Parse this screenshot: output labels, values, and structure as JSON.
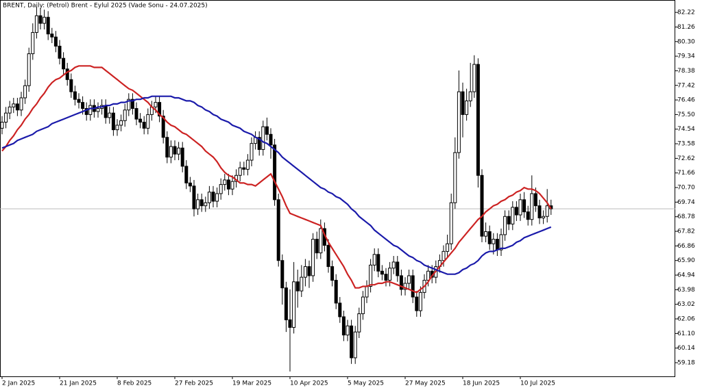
{
  "chart_data": {
    "type": "candlestick",
    "title": "BRENT, Daily:  (Petrol) Brent - Eylul 2025 (Vade Sonu - 24.07.2025)",
    "categories": [
      "2 Jan 2025",
      null,
      null,
      null,
      null,
      null,
      null,
      null,
      null,
      null,
      null,
      null,
      null,
      null,
      null,
      "21 Jan 2025",
      null,
      null,
      null,
      null,
      null,
      null,
      null,
      null,
      null,
      null,
      null,
      null,
      null,
      null,
      "8 Feb 2025",
      null,
      null,
      null,
      null,
      null,
      null,
      null,
      null,
      null,
      null,
      null,
      null,
      null,
      null,
      "27 Feb 2025",
      null,
      null,
      null,
      null,
      null,
      null,
      null,
      null,
      null,
      null,
      null,
      null,
      null,
      null,
      "19 Mar 2025",
      null,
      null,
      null,
      null,
      null,
      null,
      null,
      null,
      null,
      null,
      null,
      null,
      null,
      null,
      "10 Apr 2025",
      null,
      null,
      null,
      null,
      null,
      null,
      null,
      null,
      null,
      null,
      null,
      null,
      null,
      null,
      "5 May 2025",
      null,
      null,
      null,
      null,
      null,
      null,
      null,
      null,
      null,
      null,
      null,
      null,
      null,
      null,
      "27 May 2025",
      null,
      null,
      null,
      null,
      null,
      null,
      null,
      null,
      null,
      null,
      null,
      null,
      null,
      null,
      "18 Jun 2025",
      null,
      null,
      null,
      null,
      null,
      null,
      null,
      null,
      null,
      null,
      null,
      null,
      null,
      null,
      "10 Jul 2025",
      null,
      null,
      null,
      null,
      null,
      null,
      null,
      null
    ],
    "open": [
      74.6,
      75.0,
      75.6,
      76.0,
      76.2,
      75.8,
      76.6,
      77.4,
      79.5,
      80.9,
      82.0,
      81.5,
      81.9,
      80.8,
      80.6,
      80.0,
      79.2,
      78.5,
      77.8,
      77.0,
      76.5,
      76.3,
      75.9,
      75.5,
      76.1,
      75.7,
      75.9,
      76.1,
      75.3,
      75.6,
      74.5,
      74.8,
      75.1,
      75.8,
      76.5,
      75.9,
      75.2,
      75.0,
      74.6,
      75.5,
      76.0,
      76.3,
      75.4,
      74.0,
      72.7,
      73.4,
      72.9,
      73.3,
      72.1,
      71.0,
      70.8,
      69.3,
      69.9,
      69.5,
      69.7,
      70.4,
      69.8,
      70.3,
      70.9,
      71.2,
      70.6,
      71.1,
      71.5,
      72.0,
      71.9,
      72.5,
      73.6,
      74.0,
      73.2,
      74.7,
      74.2,
      73.5,
      69.9,
      65.9,
      64.1,
      62.0,
      61.5,
      64.5,
      63.9,
      64.8,
      65.5,
      64.9,
      67.3,
      66.4,
      68.0,
      66.9,
      65.5,
      64.6,
      63.1,
      62.2,
      61.0,
      61.6,
      59.5,
      61.2,
      62.4,
      63.5,
      64.2,
      65.6,
      66.3,
      65.2,
      65.0,
      64.6,
      65.4,
      65.8,
      64.9,
      64.0,
      64.4,
      64.9,
      63.5,
      62.6,
      63.8,
      64.6,
      65.2,
      64.8,
      65.5,
      65.9,
      66.5,
      67.0,
      69.7,
      73.0,
      77.0,
      75.5,
      76.4,
      77.0,
      78.8,
      71.5,
      67.5,
      67.8,
      67.0,
      67.3,
      66.6,
      67.6,
      68.8,
      68.3,
      69.4,
      68.9,
      69.9,
      69.1,
      68.6,
      70.3,
      69.5,
      68.7,
      68.8,
      69.5
    ],
    "high": [
      75.4,
      76.0,
      76.4,
      76.6,
      76.6,
      77.0,
      77.8,
      79.9,
      81.5,
      82.6,
      82.5,
      82.4,
      82.3,
      81.2,
      81.0,
      80.4,
      79.6,
      78.9,
      78.2,
      77.4,
      76.9,
      76.7,
      76.3,
      76.5,
      76.5,
      76.3,
      76.5,
      76.5,
      76.0,
      76.0,
      75.2,
      75.5,
      76.2,
      76.9,
      76.9,
      76.3,
      75.6,
      75.4,
      75.9,
      76.4,
      76.7,
      76.7,
      75.8,
      74.4,
      73.8,
      73.8,
      73.7,
      73.7,
      72.5,
      71.4,
      71.2,
      70.3,
      70.3,
      70.1,
      70.8,
      70.8,
      70.7,
      71.3,
      71.6,
      71.6,
      71.5,
      71.9,
      72.4,
      72.4,
      72.9,
      74.0,
      74.4,
      74.4,
      75.1,
      75.3,
      74.6,
      73.9,
      70.3,
      66.3,
      64.5,
      64.0,
      65.8,
      65.3,
      65.6,
      66.0,
      65.9,
      67.7,
      67.8,
      68.6,
      68.4,
      67.3,
      65.9,
      65.0,
      63.5,
      62.6,
      62.0,
      62.0,
      61.6,
      62.8,
      63.9,
      64.6,
      66.0,
      66.7,
      66.7,
      65.6,
      65.4,
      65.8,
      66.2,
      66.2,
      65.3,
      64.8,
      65.3,
      65.3,
      63.9,
      64.2,
      65.0,
      65.6,
      65.6,
      65.9,
      66.3,
      66.9,
      67.6,
      70.3,
      74.0,
      78.4,
      77.6,
      77.2,
      78.9,
      79.4,
      79.2,
      71.9,
      68.4,
      68.2,
      67.7,
      67.7,
      68.0,
      69.2,
      69.2,
      69.8,
      69.8,
      70.3,
      70.4,
      69.5,
      71.5,
      70.7,
      69.9,
      69.2,
      70.6,
      69.9
    ],
    "low": [
      74.2,
      74.6,
      75.2,
      75.6,
      75.4,
      75.4,
      76.2,
      77.0,
      79.1,
      80.5,
      81.1,
      81.1,
      80.4,
      80.2,
      79.6,
      78.8,
      78.1,
      77.4,
      76.6,
      76.1,
      75.9,
      75.5,
      75.1,
      75.1,
      75.3,
      75.3,
      75.5,
      74.9,
      74.9,
      74.1,
      74.1,
      74.4,
      74.7,
      75.4,
      75.5,
      74.8,
      74.6,
      74.2,
      74.2,
      75.1,
      75.6,
      75.0,
      73.6,
      72.3,
      72.3,
      72.5,
      72.5,
      71.7,
      70.6,
      70.4,
      68.8,
      68.9,
      69.1,
      69.1,
      69.3,
      69.4,
      69.4,
      69.9,
      70.5,
      70.2,
      70.2,
      70.7,
      71.1,
      71.5,
      71.5,
      72.1,
      73.2,
      72.8,
      72.8,
      73.8,
      72.6,
      69.5,
      65.5,
      63.0,
      61.2,
      58.6,
      61.1,
      62.8,
      63.5,
      64.2,
      64.1,
      64.5,
      66.0,
      66.0,
      66.5,
      65.1,
      64.2,
      62.7,
      61.8,
      60.6,
      60.6,
      59.1,
      59.1,
      60.8,
      62.0,
      63.1,
      63.8,
      65.2,
      64.8,
      64.6,
      64.2,
      64.2,
      65.0,
      64.5,
      63.6,
      63.6,
      64.0,
      63.1,
      62.2,
      62.2,
      63.4,
      64.2,
      64.4,
      64.4,
      65.1,
      65.5,
      66.1,
      66.6,
      69.3,
      72.6,
      74.0,
      75.1,
      76.0,
      76.6,
      70.7,
      67.1,
      67.1,
      66.6,
      66.3,
      66.2,
      66.2,
      67.2,
      67.9,
      67.9,
      68.5,
      68.5,
      68.7,
      68.2,
      68.2,
      69.1,
      68.3,
      68.3,
      68.4,
      68.9
    ],
    "close": [
      75.0,
      75.6,
      76.0,
      76.2,
      75.8,
      76.6,
      77.4,
      79.5,
      80.9,
      82.0,
      81.5,
      81.9,
      80.8,
      80.6,
      80.0,
      79.2,
      78.5,
      77.8,
      77.0,
      76.5,
      76.3,
      75.9,
      75.5,
      76.1,
      75.7,
      75.9,
      76.1,
      75.3,
      75.6,
      74.5,
      74.8,
      75.1,
      75.8,
      76.5,
      75.9,
      75.2,
      75.0,
      74.6,
      75.5,
      76.0,
      76.3,
      75.4,
      74.0,
      72.7,
      73.4,
      72.9,
      73.3,
      72.1,
      71.0,
      70.8,
      69.3,
      69.9,
      69.5,
      69.7,
      70.4,
      69.8,
      70.3,
      70.9,
      71.2,
      70.6,
      71.1,
      71.5,
      72.0,
      71.9,
      72.5,
      73.6,
      74.0,
      73.2,
      74.7,
      74.2,
      73.5,
      69.9,
      65.9,
      64.1,
      62.0,
      61.5,
      64.5,
      63.9,
      64.8,
      65.5,
      64.9,
      67.3,
      66.4,
      68.0,
      66.9,
      65.5,
      64.6,
      63.1,
      62.2,
      61.0,
      61.6,
      59.5,
      61.2,
      62.4,
      63.5,
      64.2,
      65.6,
      66.3,
      65.2,
      65.0,
      64.6,
      65.4,
      65.8,
      64.9,
      64.0,
      64.4,
      64.9,
      63.5,
      62.6,
      63.8,
      64.6,
      65.2,
      64.8,
      65.5,
      65.9,
      66.5,
      67.0,
      69.7,
      73.0,
      77.0,
      75.5,
      76.4,
      77.0,
      78.8,
      71.5,
      67.5,
      67.8,
      67.0,
      67.3,
      66.6,
      67.6,
      68.8,
      68.3,
      69.4,
      68.9,
      69.9,
      69.1,
      68.6,
      70.3,
      69.5,
      68.7,
      68.8,
      69.5,
      69.3
    ],
    "series": [
      {
        "color": "#cc2222",
        "values": [
          73.1,
          73.4,
          73.8,
          74.1,
          74.5,
          74.8,
          75.2,
          75.5,
          75.9,
          76.2,
          76.6,
          76.9,
          77.3,
          77.6,
          77.8,
          77.9,
          78.1,
          78.3,
          78.4,
          78.6,
          78.7,
          78.7,
          78.7,
          78.7,
          78.6,
          78.6,
          78.6,
          78.4,
          78.2,
          78.0,
          77.8,
          77.6,
          77.4,
          77.2,
          77.1,
          76.9,
          76.7,
          76.5,
          76.3,
          76.0,
          75.8,
          75.5,
          75.3,
          75.0,
          74.8,
          74.7,
          74.5,
          74.3,
          74.2,
          74.0,
          73.8,
          73.6,
          73.4,
          73.1,
          72.9,
          72.7,
          72.4,
          72.0,
          71.7,
          71.5,
          71.4,
          71.2,
          71.0,
          71.0,
          70.9,
          70.9,
          70.8,
          71.0,
          71.2,
          71.4,
          71.6,
          71.1,
          70.6,
          70.1,
          69.5,
          69.0,
          68.9,
          68.8,
          68.7,
          68.6,
          68.5,
          68.4,
          68.3,
          68.2,
          67.6,
          67.1,
          66.7,
          66.3,
          65.9,
          65.5,
          65.0,
          64.6,
          64.1,
          64.1,
          64.2,
          64.2,
          64.3,
          64.3,
          64.4,
          64.4,
          64.5,
          64.5,
          64.4,
          64.3,
          64.2,
          64.1,
          64.0,
          63.9,
          63.8,
          64.0,
          64.2,
          64.5,
          64.9,
          65.2,
          65.5,
          65.8,
          66.1,
          66.4,
          66.7,
          67.1,
          67.4,
          67.7,
          68.0,
          68.3,
          68.6,
          68.8,
          69.1,
          69.3,
          69.5,
          69.6,
          69.8,
          69.9,
          70.1,
          70.2,
          70.4,
          70.5,
          70.7,
          70.6,
          70.6,
          70.5,
          70.3,
          70.0,
          69.7,
          69.3
        ]
      },
      {
        "color": "#1a1aaa",
        "values": [
          73.3,
          73.4,
          73.5,
          73.6,
          73.8,
          73.9,
          74.0,
          74.1,
          74.2,
          74.4,
          74.5,
          74.6,
          74.7,
          74.9,
          75.0,
          75.1,
          75.2,
          75.3,
          75.4,
          75.5,
          75.6,
          75.7,
          75.8,
          75.9,
          75.9,
          76.0,
          76.0,
          76.1,
          76.1,
          76.2,
          76.2,
          76.3,
          76.3,
          76.4,
          76.4,
          76.5,
          76.5,
          76.6,
          76.6,
          76.7,
          76.7,
          76.7,
          76.7,
          76.7,
          76.7,
          76.6,
          76.6,
          76.5,
          76.4,
          76.4,
          76.3,
          76.1,
          76.0,
          75.8,
          75.7,
          75.5,
          75.4,
          75.2,
          75.1,
          75.0,
          74.8,
          74.7,
          74.6,
          74.4,
          74.3,
          74.2,
          74.0,
          73.9,
          73.7,
          73.6,
          73.4,
          73.2,
          73.0,
          72.7,
          72.5,
          72.3,
          72.1,
          71.9,
          71.7,
          71.5,
          71.3,
          71.1,
          70.9,
          70.7,
          70.6,
          70.4,
          70.3,
          70.1,
          70.0,
          69.8,
          69.6,
          69.3,
          69.1,
          68.8,
          68.6,
          68.4,
          68.2,
          67.9,
          67.7,
          67.5,
          67.3,
          67.1,
          66.9,
          66.8,
          66.6,
          66.4,
          66.2,
          66.1,
          65.9,
          65.8,
          65.6,
          65.5,
          65.4,
          65.3,
          65.2,
          65.1,
          65.0,
          65.0,
          65.0,
          65.1,
          65.3,
          65.4,
          65.6,
          65.7,
          65.9,
          66.2,
          66.4,
          66.5,
          66.5,
          66.6,
          66.7,
          66.7,
          66.8,
          66.9,
          67.1,
          67.2,
          67.4,
          67.5,
          67.6,
          67.7,
          67.8,
          67.9,
          68.0,
          68.1
        ]
      }
    ],
    "ylim": [
      58.28,
      82.99
    ],
    "yticks": [
      82.22,
      81.26,
      {
        "value": 80.3,
        "label": "80.30"
      },
      79.34,
      78.38,
      77.42,
      76.46,
      {
        "value": 75.5,
        "label": "75.50"
      },
      74.54,
      73.58,
      72.62,
      71.66,
      {
        "value": 70.7,
        "label": "70.70"
      },
      69.74,
      68.78,
      67.82,
      66.86,
      {
        "value": 65.9,
        "label": "65.90"
      },
      64.94,
      63.98,
      63.02,
      62.06,
      {
        "value": 61.1,
        "label": "61.10"
      },
      60.14,
      59.18
    ],
    "grid": false,
    "price_line": true
  }
}
